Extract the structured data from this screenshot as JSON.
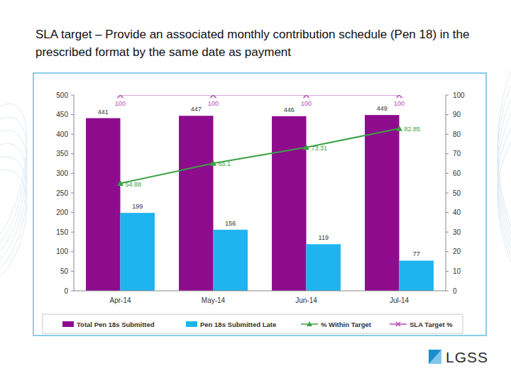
{
  "chart_data": {
    "type": "bar",
    "title": "SLA target – Provide an associated monthly contribution schedule (Pen 18) in the prescribed format by the same date as payment",
    "categories": [
      "Apr-14",
      "May-14",
      "Jun-14",
      "Jul-14"
    ],
    "series": [
      {
        "name": "Total Pen 18s Submitted",
        "type": "bar",
        "color": "#8e0b8e",
        "values": [
          441,
          447,
          446,
          449
        ]
      },
      {
        "name": "Pen 18s Submitted Late",
        "type": "bar",
        "color": "#1fb4f0",
        "values": [
          199,
          156,
          119,
          77
        ]
      },
      {
        "name": "% Within Target",
        "type": "line",
        "axis": "y2",
        "color": "#3aa142",
        "marker": "triangle",
        "values": [
          54.88,
          65.1,
          73.31,
          82.85
        ]
      },
      {
        "name": "SLA Target %",
        "type": "line",
        "axis": "y2",
        "color": "#b54ab5",
        "marker": "x",
        "values": [
          100,
          100,
          100,
          100
        ]
      }
    ],
    "ylim": [
      0,
      500
    ],
    "yticks": [
      0,
      50,
      100,
      150,
      200,
      250,
      300,
      350,
      400,
      450,
      500
    ],
    "y2lim": [
      0,
      100
    ],
    "y2ticks": [
      0,
      10,
      20,
      30,
      40,
      50,
      60,
      70,
      80,
      90,
      100
    ],
    "grid": false,
    "legend": "bottom",
    "data_labels": true,
    "annotations": [
      "LGSS"
    ]
  }
}
